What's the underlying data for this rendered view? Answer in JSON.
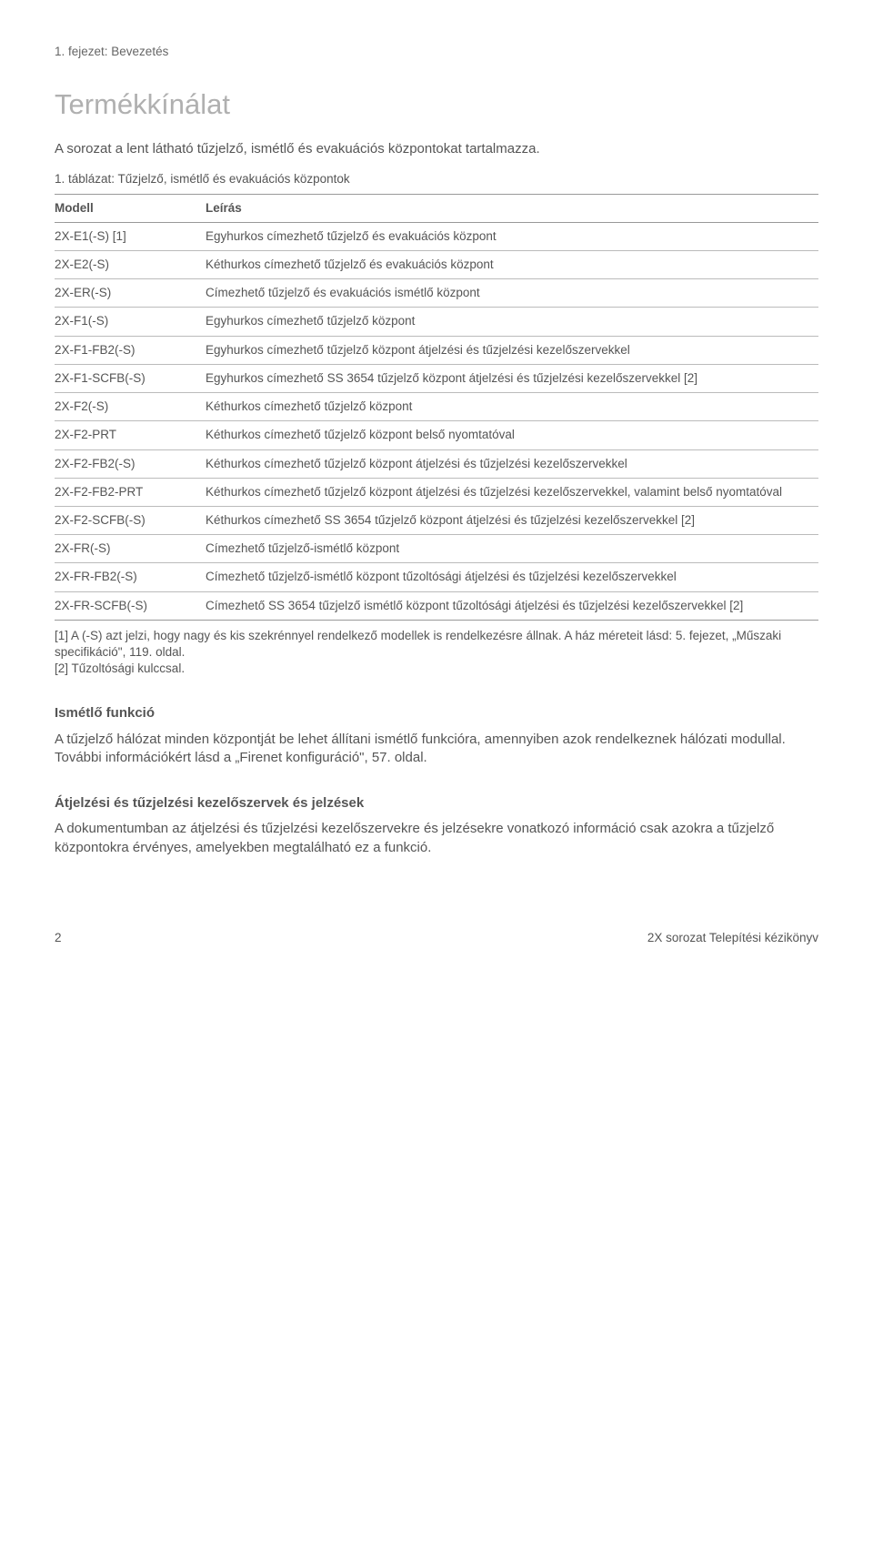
{
  "chapter_label": "1. fejezet: Bevezetés",
  "heading": "Termékkínálat",
  "intro": "A sorozat a lent látható tűzjelző, ismétlő és evakuációs központokat tartalmazza.",
  "table_caption": "1. táblázat: Tűzjelző, ismétlő és evakuációs központok",
  "table": {
    "columns": [
      "Modell",
      "Leírás"
    ],
    "col_widths": [
      "160px",
      "auto"
    ],
    "rows": [
      [
        "2X-E1(-S) [1]",
        "Egyhurkos címezhető tűzjelző és evakuációs központ"
      ],
      [
        "2X-E2(-S)",
        "Kéthurkos címezhető tűzjelző és evakuációs központ"
      ],
      [
        "2X-ER(-S)",
        "Címezhető tűzjelző és evakuációs ismétlő központ"
      ],
      [
        "2X-F1(-S)",
        "Egyhurkos címezhető tűzjelző központ"
      ],
      [
        "2X-F1-FB2(-S)",
        "Egyhurkos címezhető tűzjelző központ átjelzési és tűzjelzési kezelőszervekkel"
      ],
      [
        "2X-F1-SCFB(-S)",
        "Egyhurkos címezhető SS 3654 tűzjelző központ átjelzési és tűzjelzési kezelőszervekkel [2]"
      ],
      [
        "2X-F2(-S)",
        "Kéthurkos címezhető tűzjelző központ"
      ],
      [
        "2X-F2-PRT",
        "Kéthurkos címezhető tűzjelző központ belső nyomtatóval"
      ],
      [
        "2X-F2-FB2(-S)",
        "Kéthurkos címezhető tűzjelző központ átjelzési és tűzjelzési kezelőszervekkel"
      ],
      [
        "2X-F2-FB2-PRT",
        "Kéthurkos címezhető tűzjelző központ átjelzési és tűzjelzési kezelőszervekkel, valamint belső nyomtatóval"
      ],
      [
        "2X-F2-SCFB(-S)",
        "Kéthurkos címezhető SS 3654 tűzjelző központ átjelzési és tűzjelzési kezelőszervekkel [2]"
      ],
      [
        "2X-FR(-S)",
        "Címezhető tűzjelző-ismétlő központ"
      ],
      [
        "2X-FR-FB2(-S)",
        "Címezhető tűzjelző-ismétlő központ tűzoltósági átjelzési és tűzjelzési kezelőszervekkel"
      ],
      [
        "2X-FR-SCFB(-S)",
        "Címezhető SS 3654 tűzjelző ismétlő központ tűzoltósági átjelzési és tűzjelzési kezelőszervekkel [2]"
      ]
    ]
  },
  "notes": {
    "n1": "[1] A (-S) azt jelzi, hogy nagy és kis szekrénnyel rendelkező modellek is rendelkezésre állnak. A ház méreteit lásd: 5. fejezet, „Műszaki specifikáció\", 119. oldal.",
    "n2": "[2] Tűzoltósági kulccsal."
  },
  "section1": {
    "title": "Ismétlő funkció",
    "body": "A tűzjelző hálózat minden központját be lehet állítani ismétlő funkcióra, amennyiben azok rendelkeznek hálózati modullal. További információkért lásd a „Firenet konfiguráció\", 57. oldal."
  },
  "section2": {
    "title": "Átjelzési és tűzjelzési kezelőszervek és jelzések",
    "body": "A dokumentumban az átjelzési és tűzjelzési kezelőszervekre és jelzésekre vonatkozó információ csak azokra a tűzjelző központokra érvényes, amelyekben megtalálható ez a funkció."
  },
  "footer": {
    "page": "2",
    "doc": "2X sorozat Telepítési kézikönyv"
  }
}
